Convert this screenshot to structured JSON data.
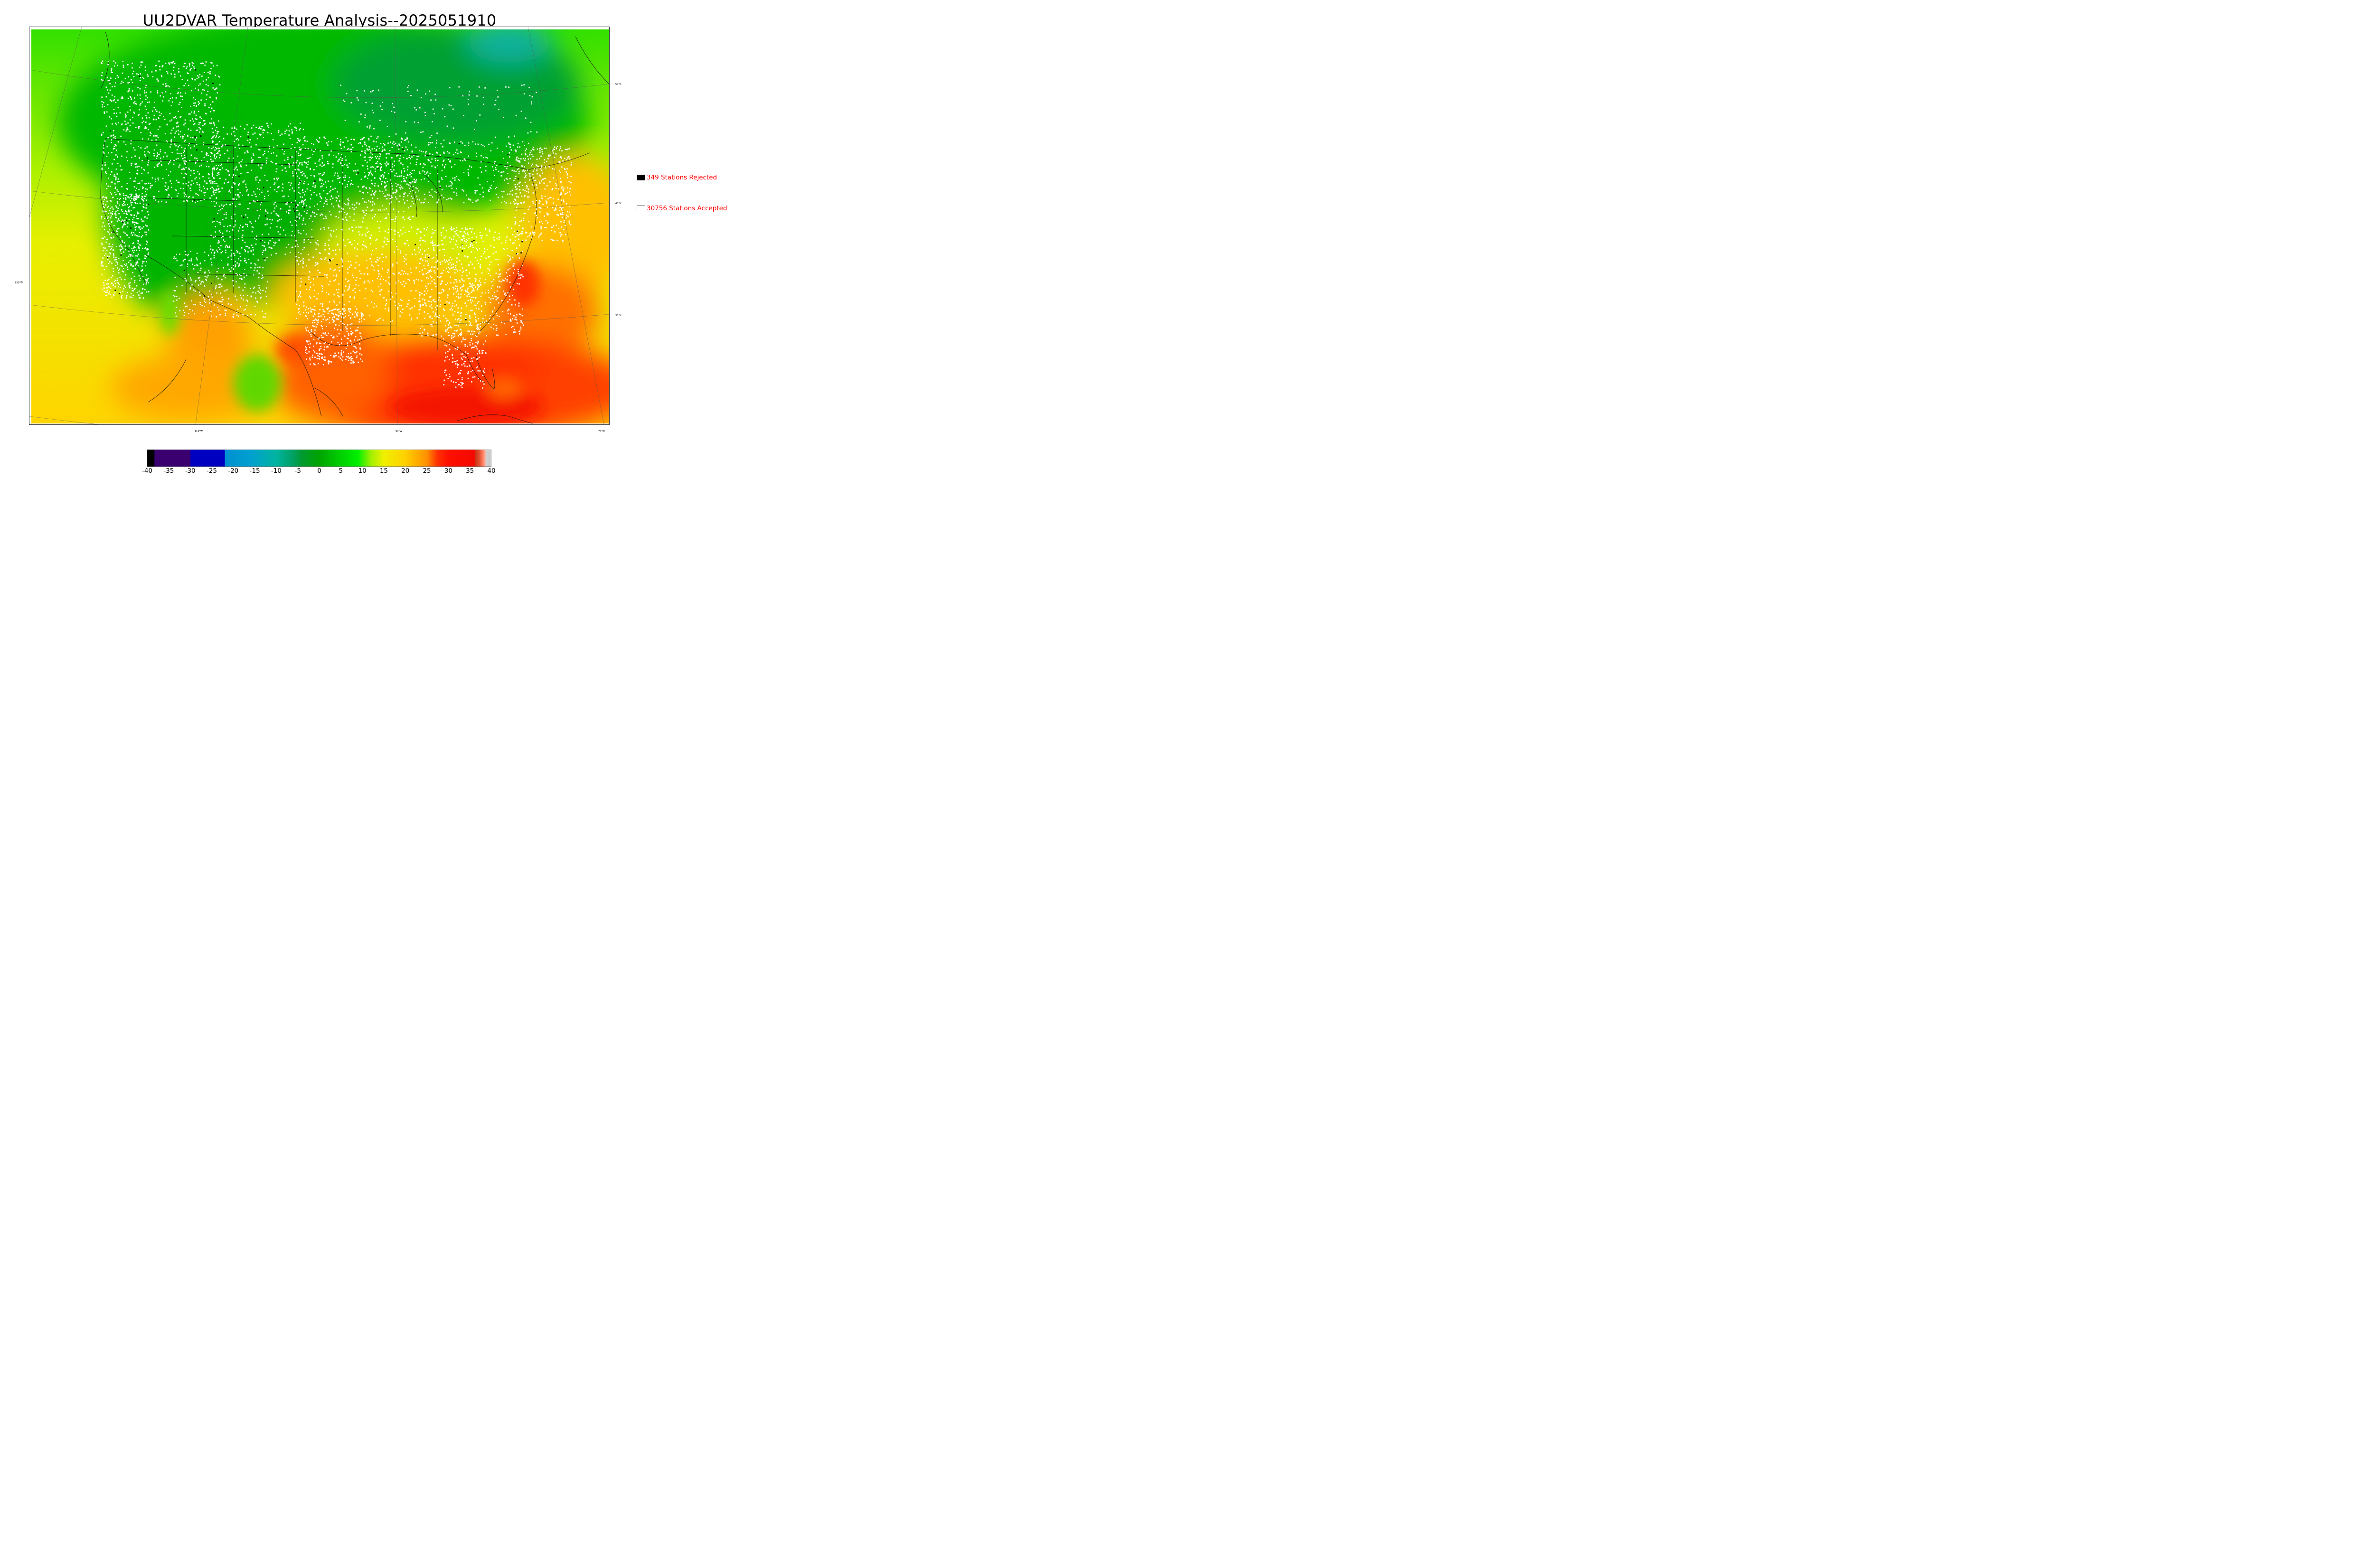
{
  "title": "UU2DVAR Temperature Analysis--2025051910",
  "map": {
    "lat_labels": [
      {
        "text": "50°N"
      },
      {
        "text": "40°N"
      },
      {
        "text": "30°N"
      }
    ],
    "lon_labels": [
      {
        "text": "130°W"
      },
      {
        "text": "110°W"
      },
      {
        "text": "90°W"
      },
      {
        "text": "70°W"
      }
    ],
    "colors": {
      "cold": "#00b400",
      "cool": "#00e600",
      "mild": "#c8f000",
      "warm": "#ffc800",
      "hot": "#ff6000",
      "very_hot": "#f51400",
      "stations_accepted": "#ffffff",
      "stations_rejected": "#000000"
    }
  },
  "legend": {
    "rejected": {
      "label": "349 Stations Rejected",
      "swatch": "#000000"
    },
    "accepted": {
      "label": "30756 Stations Accepted",
      "swatch": "#ffffff"
    }
  },
  "colorbar": {
    "ticks": [
      "-40",
      "-35",
      "-30",
      "-25",
      "-20",
      "-15",
      "-10",
      "-5",
      "0",
      "5",
      "10",
      "15",
      "20",
      "25",
      "30",
      "35",
      "40"
    ],
    "range": [
      -40,
      40
    ],
    "stops": [
      {
        "v": -40,
        "c": "#000000"
      },
      {
        "v": -38.5,
        "c": "#000000"
      },
      {
        "v": -38.2,
        "c": "#3a0070"
      },
      {
        "v": -30,
        "c": "#3a0070"
      },
      {
        "v": -29.9,
        "c": "#0000c0"
      },
      {
        "v": -22,
        "c": "#0000c0"
      },
      {
        "v": -21.9,
        "c": "#0090d0"
      },
      {
        "v": -16,
        "c": "#00a0d0"
      },
      {
        "v": -10,
        "c": "#00b4a0"
      },
      {
        "v": -6,
        "c": "#00a060"
      },
      {
        "v": -4,
        "c": "#009a30"
      },
      {
        "v": 0,
        "c": "#00a400"
      },
      {
        "v": 5,
        "c": "#00d000"
      },
      {
        "v": 9,
        "c": "#00f000"
      },
      {
        "v": 12,
        "c": "#a0f000"
      },
      {
        "v": 15,
        "c": "#f0f000"
      },
      {
        "v": 20,
        "c": "#ffd000"
      },
      {
        "v": 25,
        "c": "#ff9000"
      },
      {
        "v": 27.5,
        "c": "#ff3000"
      },
      {
        "v": 30,
        "c": "#ff1000"
      },
      {
        "v": 35,
        "c": "#f50a00"
      },
      {
        "v": 36.1,
        "c": "#f50a00"
      },
      {
        "v": 36.2,
        "c": "#c83214"
      },
      {
        "v": 37.2,
        "c": "#e05030"
      },
      {
        "v": 38,
        "c": "#ff8060"
      },
      {
        "v": 38.6,
        "c": "#ffb0a0"
      },
      {
        "v": 38.7,
        "c": "#d0d0d0"
      },
      {
        "v": 40,
        "c": "#c8c8c8"
      }
    ]
  }
}
